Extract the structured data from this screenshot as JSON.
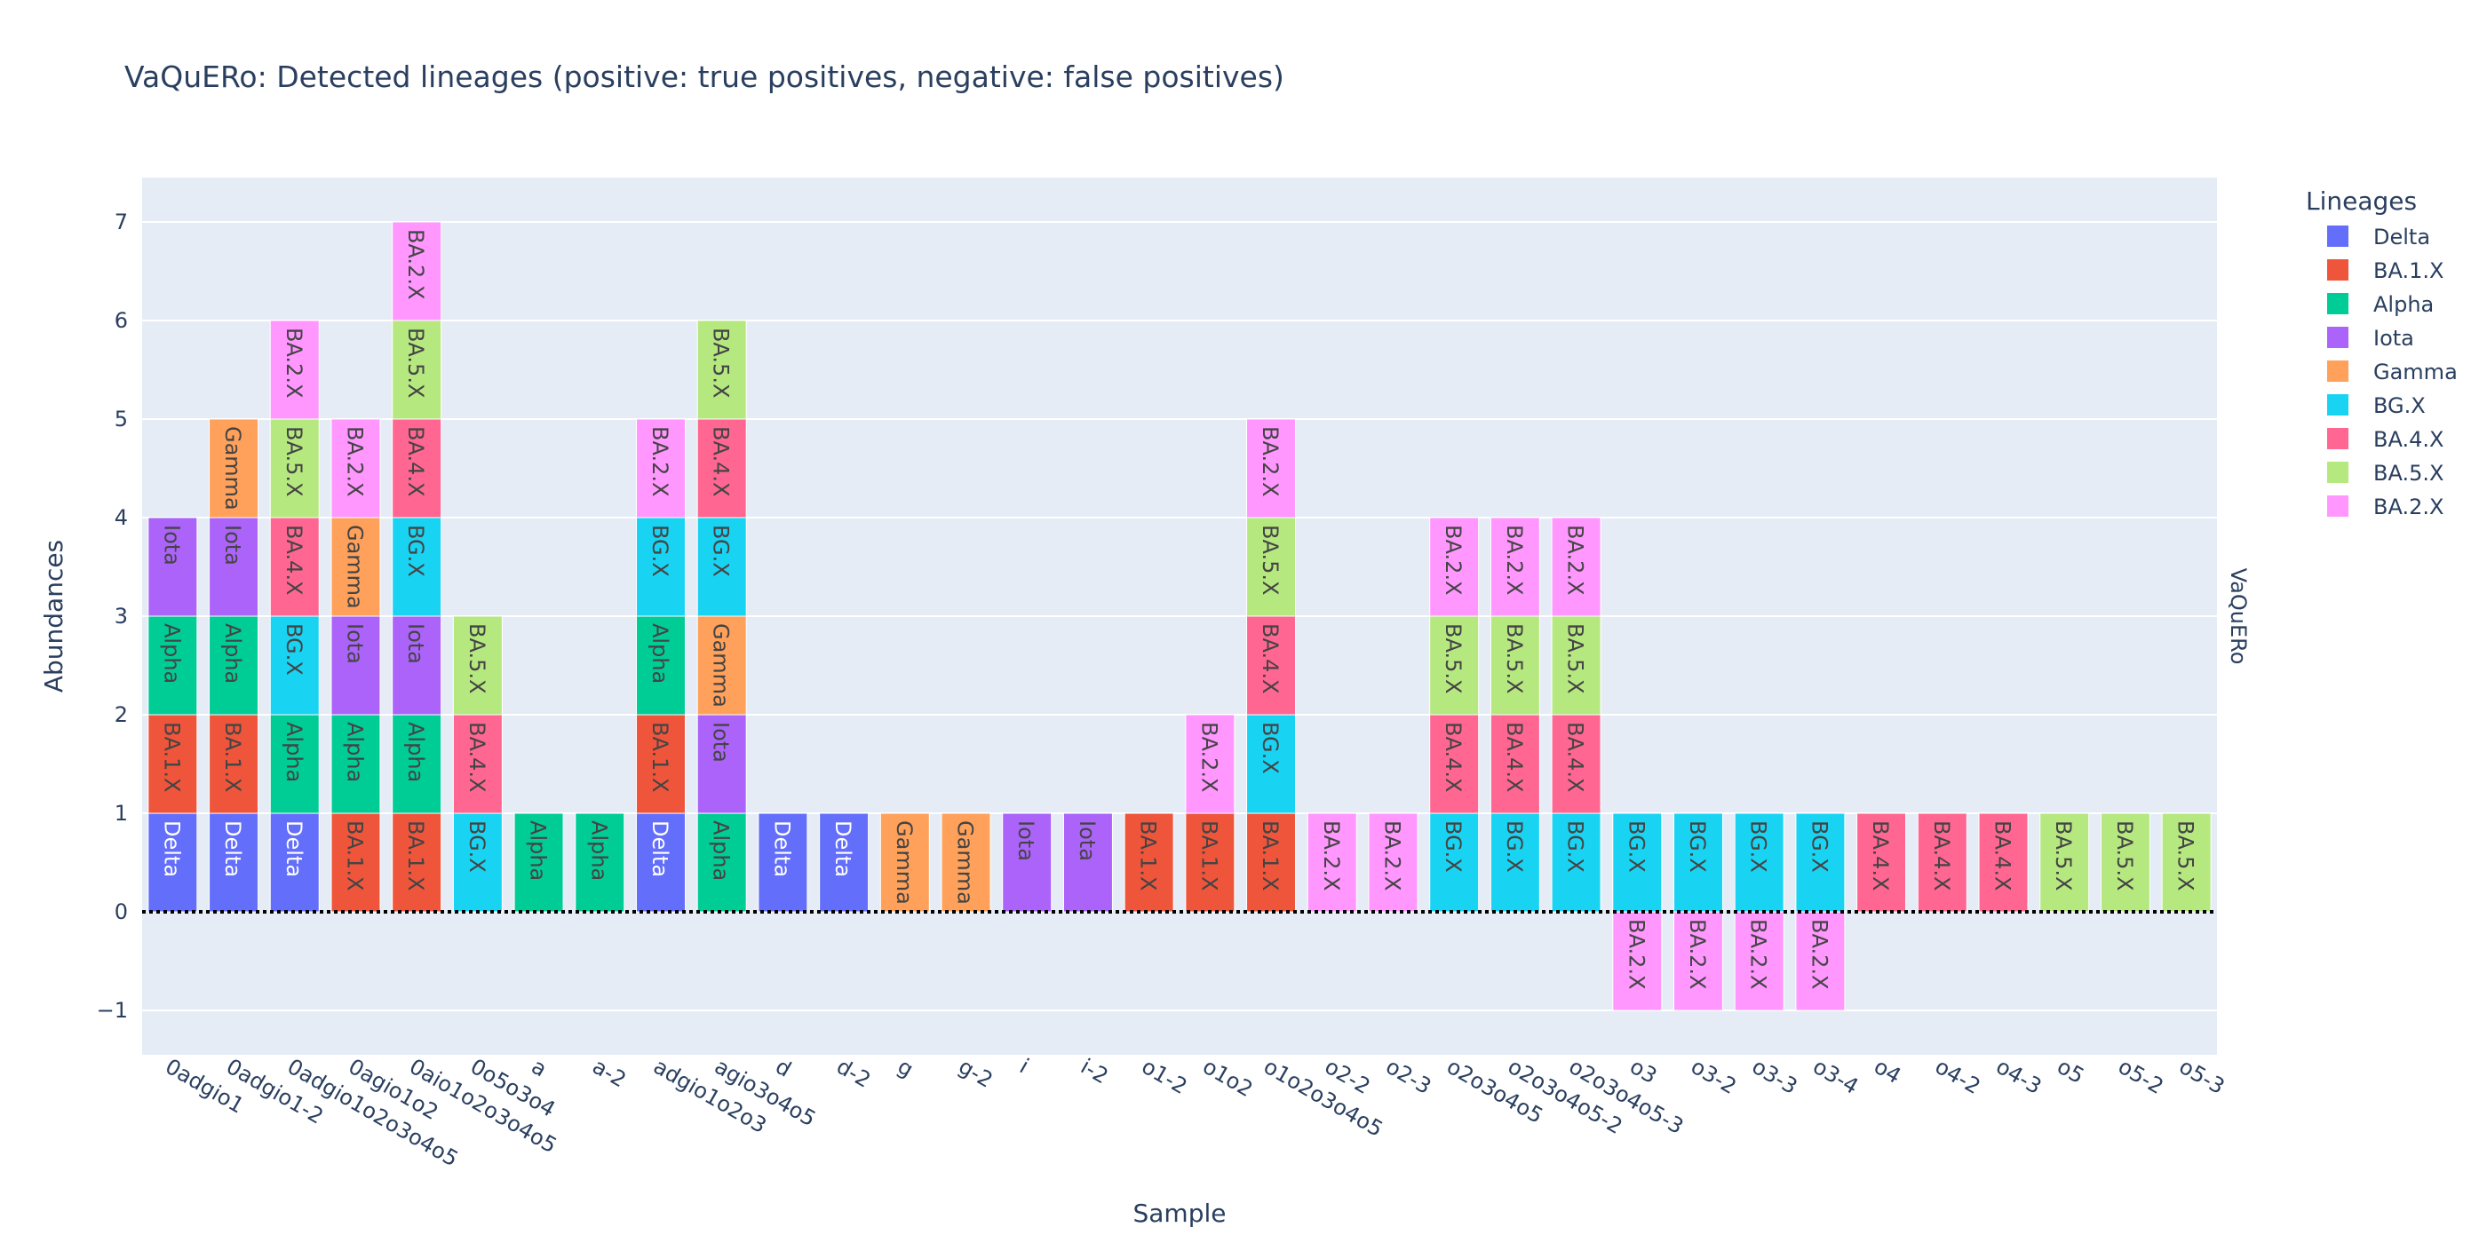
{
  "chart_data": {
    "type": "bar",
    "stacked": true,
    "title": "VaQuERo: Detected lineages (positive: true positives, negative: false positives)",
    "xlabel": "Sample",
    "ylabel": "Abundances",
    "facet_label": "VaQuERo",
    "legend_title": "Lineages",
    "legend_position": "top-right",
    "ylim": [
      -1.45,
      7.45
    ],
    "yticks": [
      -1,
      0,
      1,
      2,
      3,
      4,
      5,
      6,
      7
    ],
    "ytick_labels": [
      "−1",
      "0",
      "1",
      "2",
      "3",
      "4",
      "5",
      "6",
      "7"
    ],
    "grid": true,
    "lineages": [
      {
        "name": "Delta",
        "color": "#636efa"
      },
      {
        "name": "BA.1.X",
        "color": "#ef553b"
      },
      {
        "name": "Alpha",
        "color": "#00cc96"
      },
      {
        "name": "Iota",
        "color": "#ab63fa"
      },
      {
        "name": "Gamma",
        "color": "#ffa15a"
      },
      {
        "name": "BG.X",
        "color": "#19d3f3"
      },
      {
        "name": "BA.4.X",
        "color": "#ff6692"
      },
      {
        "name": "BA.5.X",
        "color": "#b6e880"
      },
      {
        "name": "BA.2.X",
        "color": "#ff97ff"
      }
    ],
    "samples": [
      {
        "name": "0adgio1",
        "pos": [
          "Delta",
          "BA.1.X",
          "Alpha",
          "Iota"
        ],
        "neg": []
      },
      {
        "name": "0adgio1-2",
        "pos": [
          "Delta",
          "BA.1.X",
          "Alpha",
          "Iota",
          "Gamma"
        ],
        "neg": []
      },
      {
        "name": "0adgio1o2o3o4o5",
        "pos": [
          "Delta",
          "Alpha",
          "BG.X",
          "BA.4.X",
          "BA.5.X",
          "BA.2.X"
        ],
        "neg": []
      },
      {
        "name": "0agio1o2",
        "pos": [
          "BA.1.X",
          "Alpha",
          "Iota",
          "Gamma",
          "BA.2.X"
        ],
        "neg": []
      },
      {
        "name": "0aio1o2o3o4o5",
        "pos": [
          "BA.1.X",
          "Alpha",
          "Iota",
          "BG.X",
          "BA.4.X",
          "BA.5.X",
          "BA.2.X"
        ],
        "neg": []
      },
      {
        "name": "0o5o3o4",
        "pos": [
          "BG.X",
          "BA.4.X",
          "BA.5.X"
        ],
        "neg": []
      },
      {
        "name": "a",
        "pos": [
          "Alpha"
        ],
        "neg": []
      },
      {
        "name": "a-2",
        "pos": [
          "Alpha"
        ],
        "neg": []
      },
      {
        "name": "adgio1o2o3",
        "pos": [
          "Delta",
          "BA.1.X",
          "Alpha",
          "BG.X",
          "BA.2.X"
        ],
        "neg": []
      },
      {
        "name": "agio3o4o5",
        "pos": [
          "Alpha",
          "Iota",
          "Gamma",
          "BG.X",
          "BA.4.X",
          "BA.5.X"
        ],
        "neg": []
      },
      {
        "name": "d",
        "pos": [
          "Delta"
        ],
        "neg": []
      },
      {
        "name": "d-2",
        "pos": [
          "Delta"
        ],
        "neg": []
      },
      {
        "name": "g",
        "pos": [
          "Gamma"
        ],
        "neg": []
      },
      {
        "name": "g-2",
        "pos": [
          "Gamma"
        ],
        "neg": []
      },
      {
        "name": "i",
        "pos": [
          "Iota"
        ],
        "neg": []
      },
      {
        "name": "i-2",
        "pos": [
          "Iota"
        ],
        "neg": []
      },
      {
        "name": "o1-2",
        "pos": [
          "BA.1.X"
        ],
        "neg": []
      },
      {
        "name": "o1o2",
        "pos": [
          "BA.1.X",
          "BA.2.X"
        ],
        "neg": []
      },
      {
        "name": "o1o2o3o4o5",
        "pos": [
          "BA.1.X",
          "BG.X",
          "BA.4.X",
          "BA.5.X",
          "BA.2.X"
        ],
        "neg": []
      },
      {
        "name": "o2-2",
        "pos": [
          "BA.2.X"
        ],
        "neg": []
      },
      {
        "name": "o2-3",
        "pos": [
          "BA.2.X"
        ],
        "neg": []
      },
      {
        "name": "o2o3o4o5",
        "pos": [
          "BG.X",
          "BA.4.X",
          "BA.5.X",
          "BA.2.X"
        ],
        "neg": []
      },
      {
        "name": "o2o3o4o5-2",
        "pos": [
          "BG.X",
          "BA.4.X",
          "BA.5.X",
          "BA.2.X"
        ],
        "neg": []
      },
      {
        "name": "o2o3o4o5-3",
        "pos": [
          "BG.X",
          "BA.4.X",
          "BA.5.X",
          "BA.2.X"
        ],
        "neg": []
      },
      {
        "name": "o3",
        "pos": [
          "BG.X"
        ],
        "neg": [
          "BA.2.X"
        ]
      },
      {
        "name": "o3-2",
        "pos": [
          "BG.X"
        ],
        "neg": [
          "BA.2.X"
        ]
      },
      {
        "name": "o3-3",
        "pos": [
          "BG.X"
        ],
        "neg": [
          "BA.2.X"
        ]
      },
      {
        "name": "o3-4",
        "pos": [
          "BG.X"
        ],
        "neg": [
          "BA.2.X"
        ]
      },
      {
        "name": "o4",
        "pos": [
          "BA.4.X"
        ],
        "neg": []
      },
      {
        "name": "o4-2",
        "pos": [
          "BA.4.X"
        ],
        "neg": []
      },
      {
        "name": "o4-3",
        "pos": [
          "BA.4.X"
        ],
        "neg": []
      },
      {
        "name": "o5",
        "pos": [
          "BA.5.X"
        ],
        "neg": []
      },
      {
        "name": "o5-2",
        "pos": [
          "BA.5.X"
        ],
        "neg": []
      },
      {
        "name": "o5-3",
        "pos": [
          "BA.5.X"
        ],
        "neg": []
      }
    ]
  }
}
